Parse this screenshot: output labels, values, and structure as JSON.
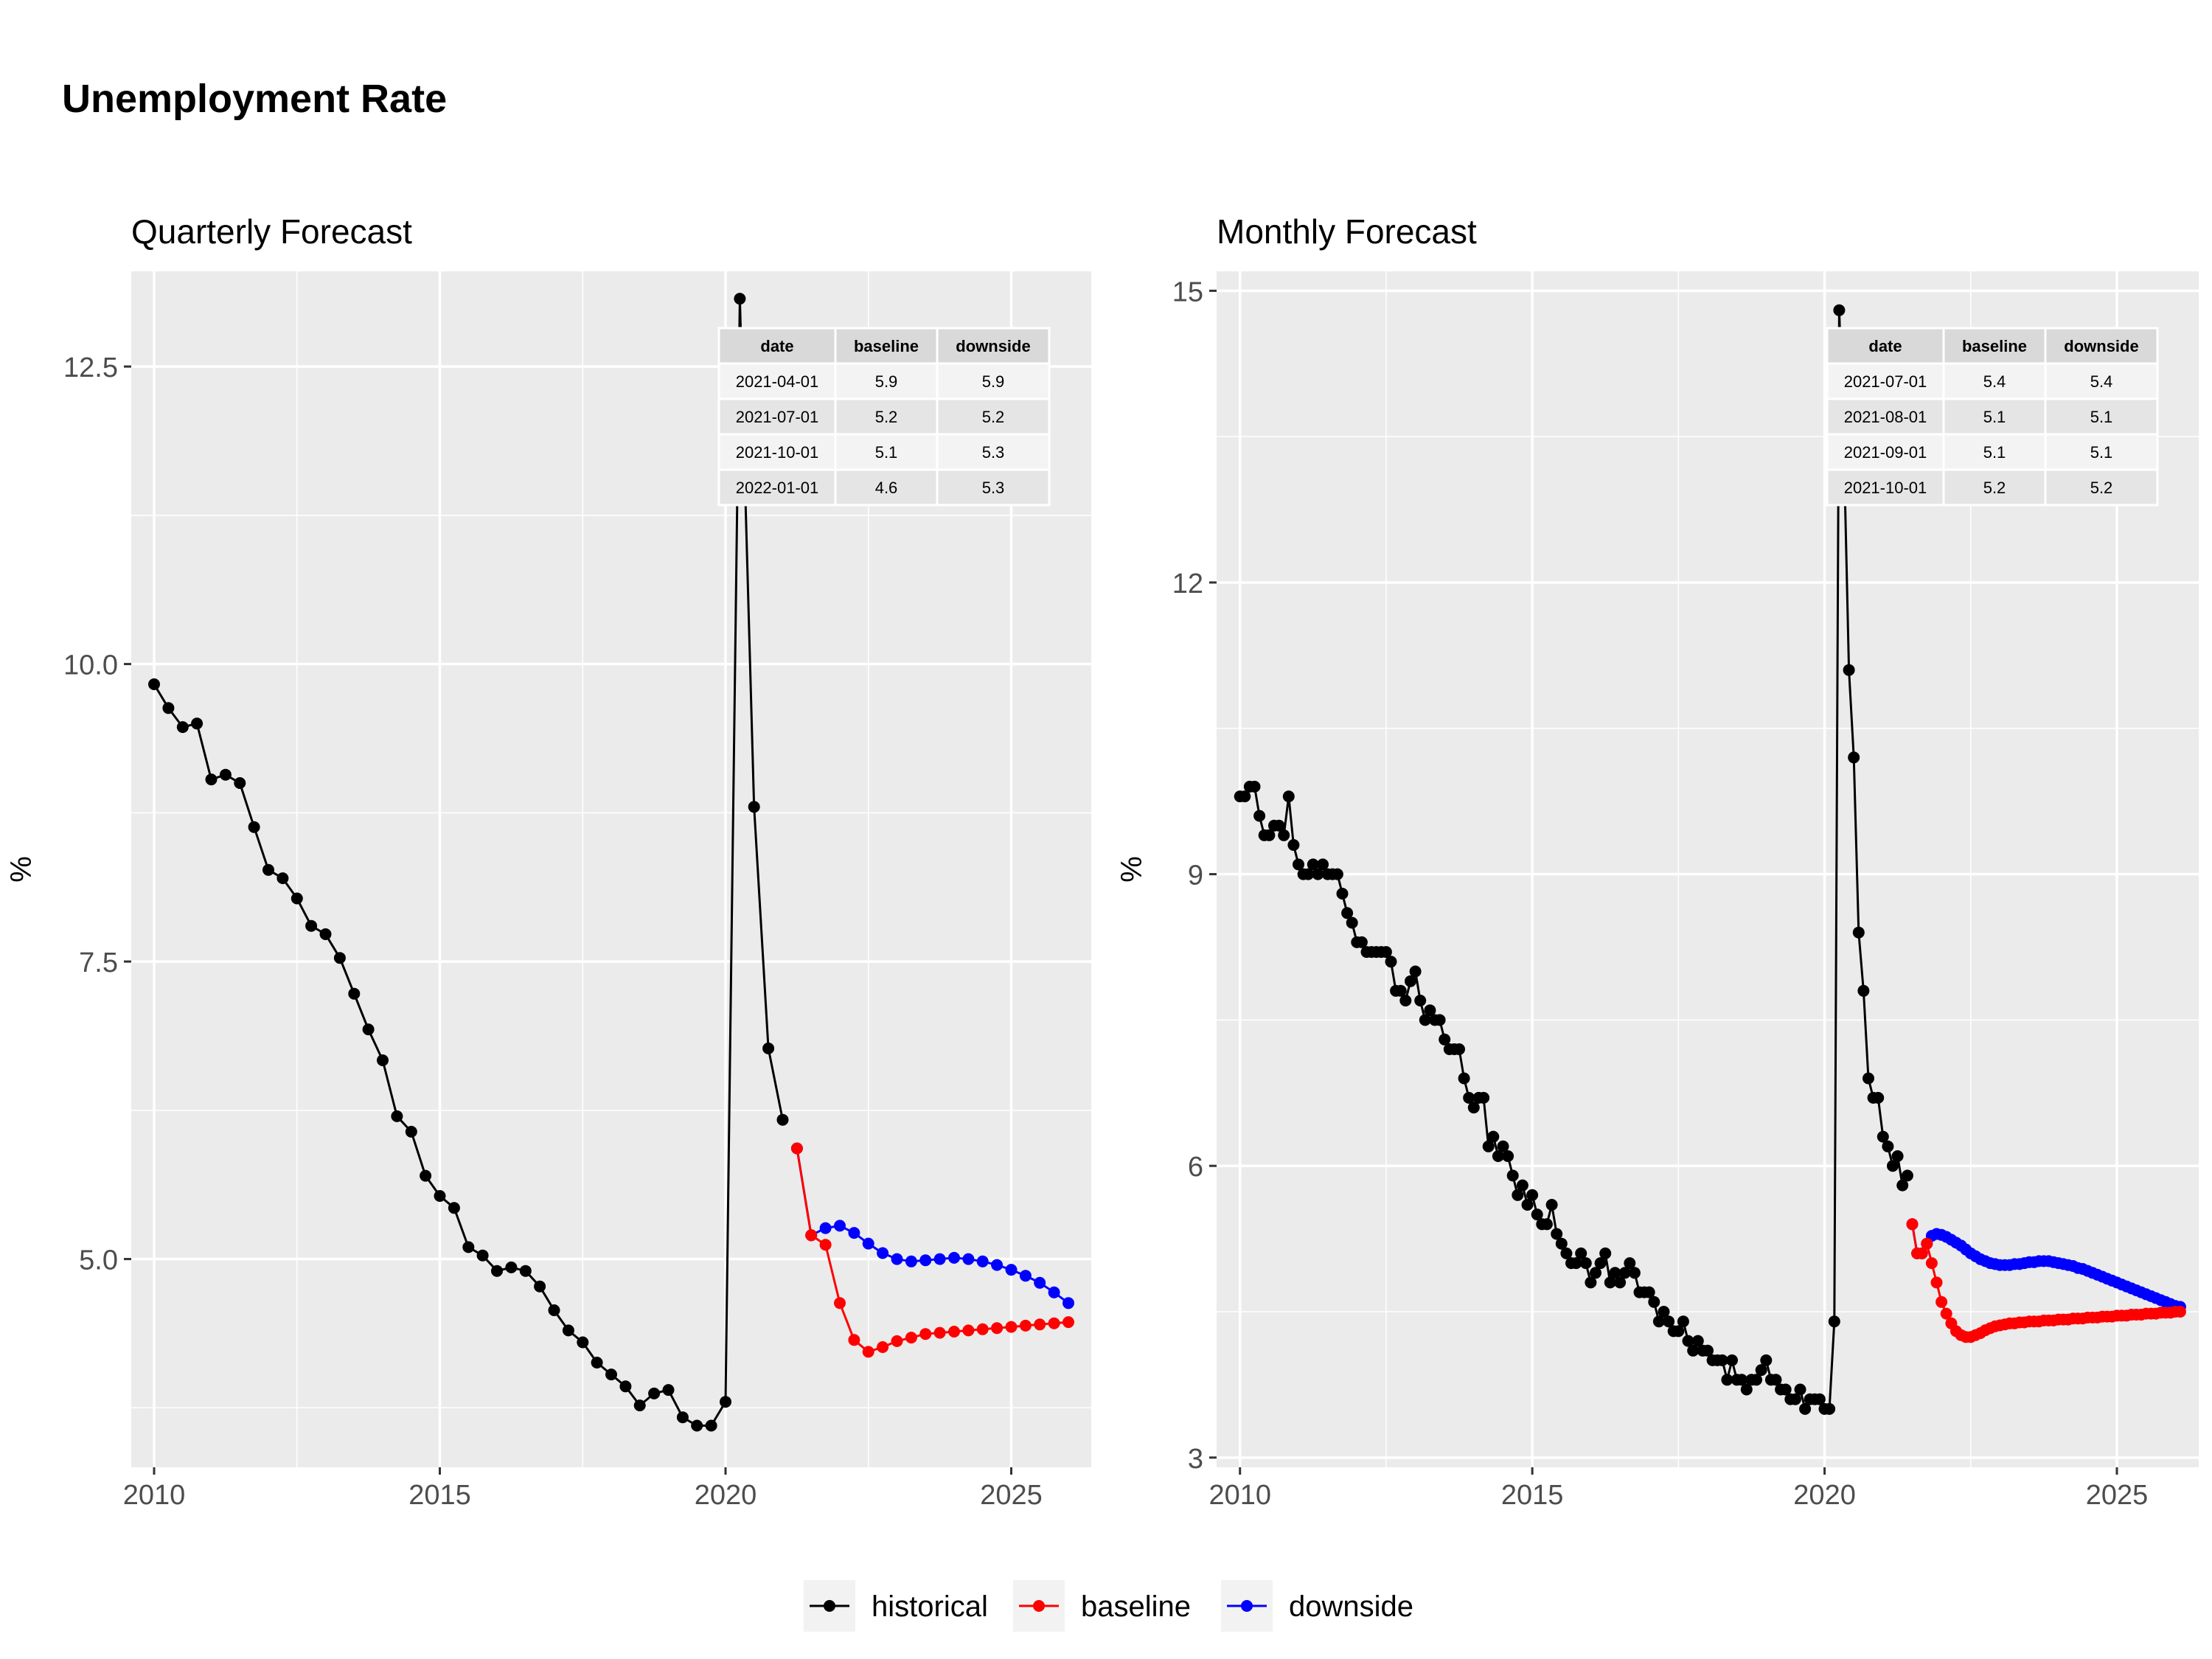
{
  "title": "Unemployment Rate",
  "legend": {
    "items": [
      {
        "label": "historical",
        "color": "#000000"
      },
      {
        "label": "baseline",
        "color": "#ff0000"
      },
      {
        "label": "downside",
        "color": "#0000ff"
      }
    ]
  },
  "colors": {
    "historical": "#000000",
    "baseline": "#ff0000",
    "downside": "#0000ff",
    "panel_bg": "#ebebeb",
    "grid": "#ffffff"
  },
  "chart_data": [
    {
      "type": "line",
      "title": "Quarterly Forecast",
      "xlabel": "",
      "ylabel": "%",
      "xlim": [
        2009.6,
        2026.4
      ],
      "ylim": [
        3.25,
        13.3
      ],
      "x_ticks": [
        2010,
        2015,
        2020,
        2025
      ],
      "x_tick_labels": [
        "2010",
        "2015",
        "2020",
        "2025"
      ],
      "y_ticks": [
        5.0,
        7.5,
        10.0,
        12.5
      ],
      "y_tick_labels": [
        "5.0",
        "7.5",
        "10.0",
        "12.5"
      ],
      "grid": true,
      "series": [
        {
          "name": "historical",
          "x": [
            2010.0,
            2010.25,
            2010.5,
            2010.75,
            2011.0,
            2011.25,
            2011.5,
            2011.75,
            2012.0,
            2012.25,
            2012.5,
            2012.75,
            2013.0,
            2013.25,
            2013.5,
            2013.75,
            2014.0,
            2014.25,
            2014.5,
            2014.75,
            2015.0,
            2015.25,
            2015.5,
            2015.75,
            2016.0,
            2016.25,
            2016.5,
            2016.75,
            2017.0,
            2017.25,
            2017.5,
            2017.75,
            2018.0,
            2018.25,
            2018.5,
            2018.75,
            2019.0,
            2019.25,
            2019.5,
            2019.75,
            2020.0,
            2020.25,
            2020.5,
            2020.75,
            2021.0
          ],
          "y": [
            9.83,
            9.63,
            9.47,
            9.5,
            9.03,
            9.07,
            9.0,
            8.63,
            8.27,
            8.2,
            8.03,
            7.8,
            7.73,
            7.53,
            7.23,
            6.93,
            6.67,
            6.2,
            6.07,
            5.7,
            5.53,
            5.43,
            5.1,
            5.03,
            4.9,
            4.93,
            4.9,
            4.77,
            4.57,
            4.4,
            4.3,
            4.13,
            4.03,
            3.93,
            3.77,
            3.87,
            3.9,
            3.67,
            3.6,
            3.6,
            3.8,
            13.07,
            8.8,
            6.77,
            6.17
          ]
        },
        {
          "name": "baseline",
          "x": [
            2021.25,
            2021.5,
            2021.75,
            2022.0,
            2022.25,
            2022.5,
            2022.75,
            2023.0,
            2023.25,
            2023.5,
            2023.75,
            2024.0,
            2024.25,
            2024.5,
            2024.75,
            2025.0,
            2025.25,
            2025.5,
            2025.75,
            2026.0
          ],
          "y": [
            5.93,
            5.2,
            5.12,
            4.63,
            4.32,
            4.22,
            4.26,
            4.31,
            4.34,
            4.37,
            4.38,
            4.39,
            4.4,
            4.41,
            4.42,
            4.43,
            4.44,
            4.45,
            4.46,
            4.47
          ]
        },
        {
          "name": "downside",
          "x": [
            2021.25,
            2021.5,
            2021.75,
            2022.0,
            2022.25,
            2022.5,
            2022.75,
            2023.0,
            2023.25,
            2023.5,
            2023.75,
            2024.0,
            2024.25,
            2024.5,
            2024.75,
            2025.0,
            2025.25,
            2025.5,
            2025.75,
            2026.0
          ],
          "y": [
            5.93,
            5.2,
            5.26,
            5.28,
            5.22,
            5.13,
            5.05,
            5.0,
            4.98,
            4.99,
            5.0,
            5.01,
            5.0,
            4.98,
            4.95,
            4.91,
            4.86,
            4.8,
            4.72,
            4.63
          ]
        }
      ],
      "table": {
        "columns": [
          "date",
          "baseline",
          "downside"
        ],
        "rows": [
          [
            "2021-04-01",
            "5.9",
            "5.9"
          ],
          [
            "2021-07-01",
            "5.2",
            "5.2"
          ],
          [
            "2021-10-01",
            "5.1",
            "5.3"
          ],
          [
            "2022-01-01",
            "4.6",
            "5.3"
          ]
        ]
      }
    },
    {
      "type": "line",
      "title": "Monthly Forecast",
      "xlabel": "",
      "ylabel": "%",
      "xlim": [
        2009.6,
        2026.4
      ],
      "ylim": [
        2.9,
        15.2
      ],
      "x_ticks": [
        2010,
        2015,
        2020,
        2025
      ],
      "x_tick_labels": [
        "2010",
        "2015",
        "2020",
        "2025"
      ],
      "y_ticks": [
        3,
        6,
        9,
        12,
        15
      ],
      "y_tick_labels": [
        "3",
        "6",
        "9",
        "12",
        "15"
      ],
      "grid": true,
      "series": [
        {
          "name": "historical",
          "x_start": 2010.0,
          "x_step": 0.08333,
          "y": [
            9.8,
            9.8,
            9.9,
            9.9,
            9.6,
            9.4,
            9.4,
            9.5,
            9.5,
            9.4,
            9.8,
            9.3,
            9.1,
            9.0,
            9.0,
            9.1,
            9.0,
            9.1,
            9.0,
            9.0,
            9.0,
            8.8,
            8.6,
            8.5,
            8.3,
            8.3,
            8.2,
            8.2,
            8.2,
            8.2,
            8.2,
            8.1,
            7.8,
            7.8,
            7.7,
            7.9,
            8.0,
            7.7,
            7.5,
            7.6,
            7.5,
            7.5,
            7.3,
            7.2,
            7.2,
            7.2,
            6.9,
            6.7,
            6.6,
            6.7,
            6.7,
            6.2,
            6.3,
            6.1,
            6.2,
            6.1,
            5.9,
            5.7,
            5.8,
            5.6,
            5.7,
            5.5,
            5.4,
            5.4,
            5.6,
            5.3,
            5.2,
            5.1,
            5.0,
            5.0,
            5.1,
            5.0,
            4.8,
            4.9,
            5.0,
            5.1,
            4.8,
            4.9,
            4.8,
            4.9,
            5.0,
            4.9,
            4.7,
            4.7,
            4.7,
            4.6,
            4.4,
            4.5,
            4.4,
            4.3,
            4.3,
            4.4,
            4.2,
            4.1,
            4.2,
            4.1,
            4.1,
            4.0,
            4.0,
            4.0,
            3.8,
            4.0,
            3.8,
            3.8,
            3.7,
            3.8,
            3.8,
            3.9,
            4.0,
            3.8,
            3.8,
            3.7,
            3.7,
            3.6,
            3.6,
            3.7,
            3.5,
            3.6,
            3.6,
            3.6,
            3.5,
            3.5,
            4.4,
            14.8,
            13.3,
            11.1,
            10.2,
            8.4,
            7.8,
            6.9,
            6.7,
            6.7,
            6.3,
            6.2,
            6.0,
            6.1,
            5.8,
            5.9
          ]
        },
        {
          "name": "baseline",
          "x_start": 2021.5,
          "x_step": 0.08333,
          "y": [
            5.4,
            5.1,
            5.1,
            5.2,
            5.0,
            4.8,
            4.6,
            4.48,
            4.38,
            4.3,
            4.26,
            4.24,
            4.24,
            4.26,
            4.28,
            4.31,
            4.33,
            4.35,
            4.36,
            4.37,
            4.38,
            4.38,
            4.39,
            4.39,
            4.4,
            4.4,
            4.4,
            4.41,
            4.41,
            4.41,
            4.42,
            4.42,
            4.42,
            4.43,
            4.43,
            4.43,
            4.44,
            4.44,
            4.44,
            4.45,
            4.45,
            4.45,
            4.46,
            4.46,
            4.46,
            4.47,
            4.47,
            4.47,
            4.48,
            4.48,
            4.48,
            4.49,
            4.49,
            4.49,
            4.5,
            4.5
          ]
        },
        {
          "name": "downside",
          "x_start": 2021.5,
          "x_step": 0.08333,
          "y": [
            5.4,
            5.1,
            5.1,
            5.2,
            5.28,
            5.3,
            5.29,
            5.27,
            5.24,
            5.21,
            5.18,
            5.14,
            5.1,
            5.07,
            5.04,
            5.02,
            5.0,
            4.99,
            4.98,
            4.98,
            4.98,
            4.99,
            4.99,
            5.0,
            5.01,
            5.01,
            5.02,
            5.02,
            5.02,
            5.01,
            5.0,
            4.99,
            4.98,
            4.97,
            4.95,
            4.94,
            4.92,
            4.9,
            4.88,
            4.86,
            4.84,
            4.82,
            4.8,
            4.78,
            4.76,
            4.74,
            4.72,
            4.7,
            4.68,
            4.66,
            4.64,
            4.62,
            4.6,
            4.58,
            4.56,
            4.55
          ]
        }
      ],
      "table": {
        "columns": [
          "date",
          "baseline",
          "downside"
        ],
        "rows": [
          [
            "2021-07-01",
            "5.4",
            "5.4"
          ],
          [
            "2021-08-01",
            "5.1",
            "5.1"
          ],
          [
            "2021-09-01",
            "5.1",
            "5.1"
          ],
          [
            "2021-10-01",
            "5.2",
            "5.2"
          ]
        ]
      }
    }
  ]
}
